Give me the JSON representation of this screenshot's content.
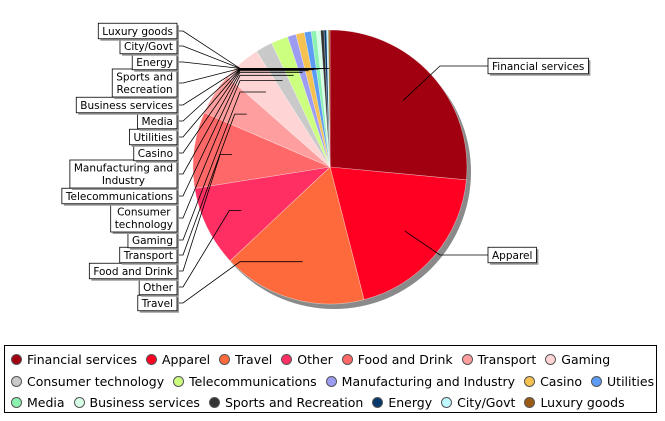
{
  "chart_data": {
    "type": "pie",
    "slices": [
      {
        "label": "Financial services",
        "legend_label": "Financial services",
        "value": 26.5,
        "color": "#a00010"
      },
      {
        "label": "Apparel",
        "legend_label": "Apparel",
        "value": 19.5,
        "color": "#ff0022"
      },
      {
        "label": "Travel",
        "legend_label": "Travel",
        "value": 17.0,
        "color": "#ff6a3c"
      },
      {
        "label": "Other",
        "legend_label": "Other",
        "value": 9.5,
        "color": "#ff2e63"
      },
      {
        "label": "Food and Drink",
        "legend_label": "Food and Drink",
        "value": 9.0,
        "color": "#ff6868"
      },
      {
        "label": "Transport",
        "legend_label": "Transport",
        "value": 5.0,
        "color": "#ff9e9e"
      },
      {
        "label": "Gaming",
        "legend_label": "Gaming",
        "value": 4.5,
        "color": "#ffd4d4"
      },
      {
        "label": "Consumer\ntechnology",
        "legend_label": "Consumer technology",
        "value": 2.0,
        "color": "#c9c9c9"
      },
      {
        "label": "Telecommunications",
        "legend_label": "Telecommunications",
        "value": 2.0,
        "color": "#ccff80"
      },
      {
        "label": "Manufacturing and\nIndustry",
        "legend_label": "Manufacturing and Industry",
        "value": 1.0,
        "color": "#9c9cf2"
      },
      {
        "label": "Casino",
        "legend_label": "Casino",
        "value": 1.0,
        "color": "#f5c150"
      },
      {
        "label": "Utilities",
        "legend_label": "Utilities",
        "value": 0.8,
        "color": "#5c9cf5"
      },
      {
        "label": "Media",
        "legend_label": "Media",
        "value": 0.6,
        "color": "#8cf2b0"
      },
      {
        "label": "Business services",
        "legend_label": "Business services",
        "value": 0.5,
        "color": "#d7ffe6"
      },
      {
        "label": "Sports and\nRecreation",
        "legend_label": "Sports and Recreation",
        "value": 0.4,
        "color": "#333333"
      },
      {
        "label": "Energy",
        "legend_label": "Energy",
        "value": 0.3,
        "color": "#06386b"
      },
      {
        "label": "City/Govt",
        "legend_label": "City/Govt",
        "value": 0.2,
        "color": "#bff8ff"
      },
      {
        "label": "Luxury goods",
        "legend_label": "Luxury goods",
        "value": 0.2,
        "color": "#9a5a14"
      }
    ],
    "legend_placement": "bottom",
    "legend_rows": [
      [
        "Financial services",
        "Apparel",
        "Travel",
        "Other",
        "Food and Drink",
        "Transport",
        "Gaming"
      ],
      [
        "Consumer technology",
        "Telecommunications",
        "Manufacturing and Industry",
        "Casino",
        "Utilities"
      ],
      [
        "Media",
        "Business services",
        "Sports and Recreation",
        "Energy",
        "City/Govt",
        "Luxury goods"
      ]
    ]
  }
}
